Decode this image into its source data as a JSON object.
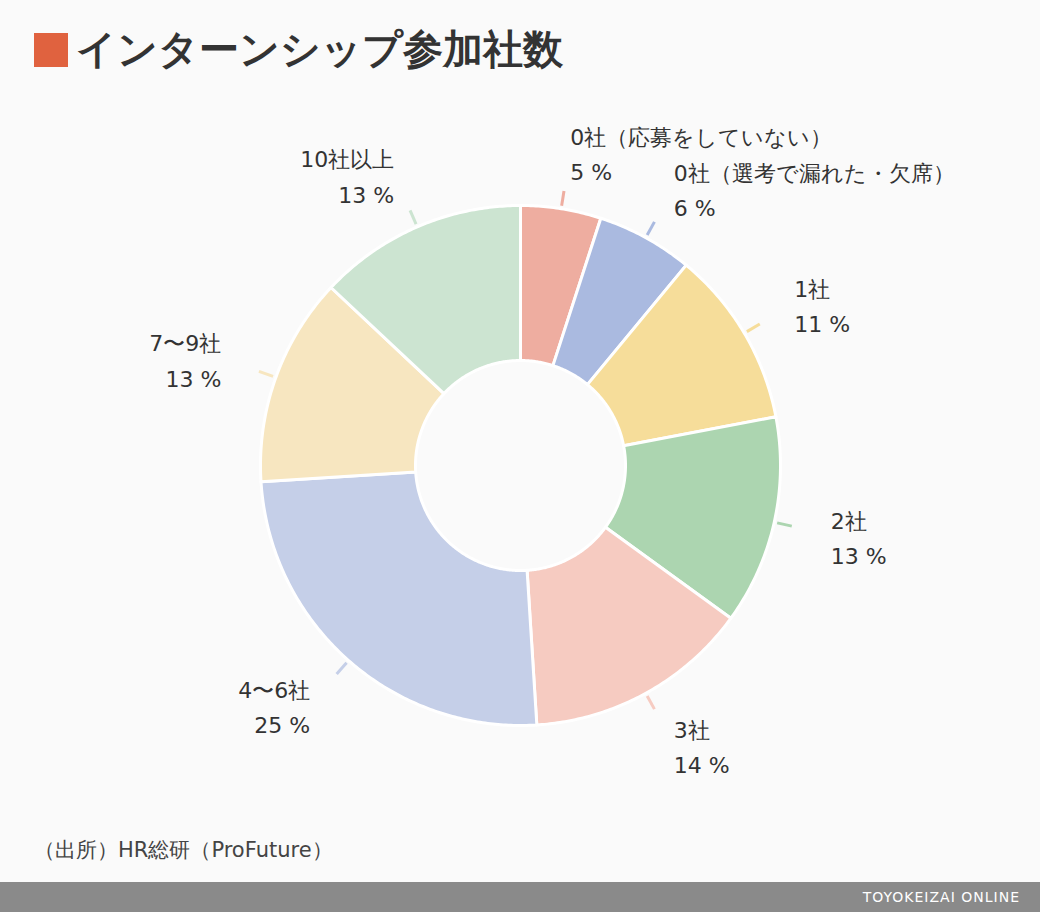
{
  "chart_data": {
    "type": "pie",
    "title": "インターンシップ参加社数",
    "categories": [
      "0社（応募をしていない）",
      "0社（選考で漏れた・欠席）",
      "1社",
      "2社",
      "3社",
      "4〜6社",
      "7〜9社",
      "10社以上"
    ],
    "values": [
      5,
      6,
      11,
      13,
      14,
      25,
      13,
      13
    ],
    "value_labels": [
      "5 %",
      "6 %",
      "11 %",
      "13 %",
      "14 %",
      "25 %",
      "13 %",
      "13 %"
    ],
    "colors": [
      "#eeada0",
      "#aabae0",
      "#f6dd9a",
      "#acd5b0",
      "#f6cbc1",
      "#c5cfe8",
      "#f7e6c0",
      "#cce4d1"
    ],
    "data_labels": true,
    "source": "（出所）HR総研（ProFuture）",
    "credit": "TOYOKEIZAI ONLINE"
  }
}
